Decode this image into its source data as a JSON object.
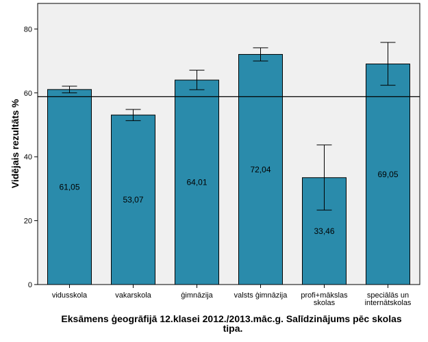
{
  "chart_data": {
    "type": "bar",
    "title": [
      "Eksāmens ģeogrāfijā 12.klasei 2012./2013.māc.g. Salīdzinājums pēc skolas",
      "tipa."
    ],
    "xlabel": "",
    "ylabel": "Vidējais rezultāts %",
    "ylim": [
      0,
      88
    ],
    "yticks": [
      0,
      20,
      40,
      60,
      80
    ],
    "grid": false,
    "reference_line": 58.8,
    "categories": [
      [
        "vidusskola"
      ],
      [
        "vakarskola"
      ],
      [
        "ģimnāzija"
      ],
      [
        "valsts ģimnāzija"
      ],
      [
        "profi+mākslas",
        "skolas"
      ],
      [
        "speciālās un",
        "internātskolas"
      ]
    ],
    "values": [
      61.05,
      53.07,
      64.01,
      72.04,
      33.46,
      69.05
    ],
    "value_labels": [
      "61,05",
      "53,07",
      "64,01",
      "72,04",
      "33,46",
      "69,05"
    ],
    "error_bars": [
      [
        60.0,
        62.1
      ],
      [
        51.3,
        54.8
      ],
      [
        61.0,
        67.1
      ],
      [
        70.0,
        74.1
      ],
      [
        23.3,
        43.7
      ],
      [
        62.4,
        75.8
      ]
    ],
    "colors": {
      "bar": "#2a8bab",
      "bar_edge": "#000000",
      "plot_bg": "#f0f0f0",
      "reference_line": "#000000"
    }
  }
}
